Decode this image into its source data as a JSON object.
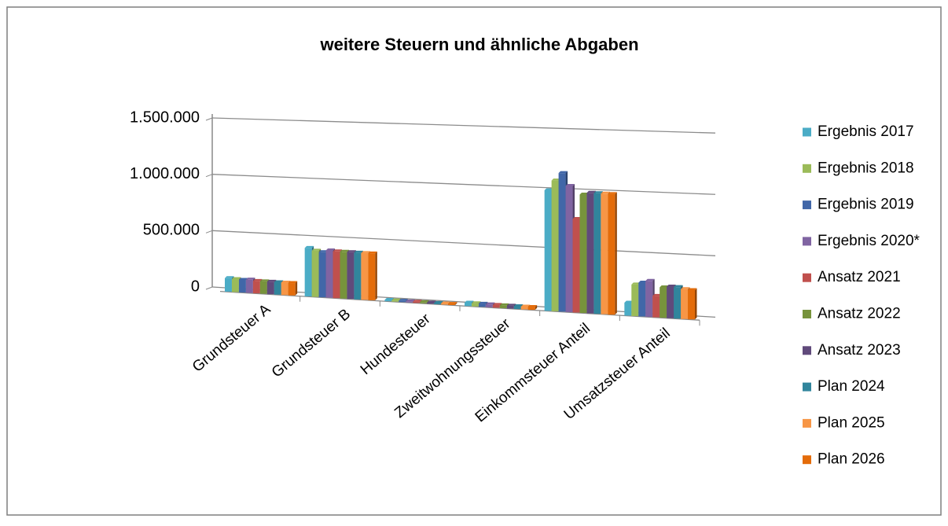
{
  "chart_data": {
    "type": "bar3d",
    "title": "weitere Steuern und ähnliche Abgaben",
    "categories": [
      "Grundsteuer A",
      "Grundsteuer B",
      "Hundesteuer",
      "Zweitwohnungssteuer",
      "Einkommsteuer Anteil",
      "Umsatzsteuer Anteil"
    ],
    "series": [
      {
        "name": "Ergebnis 2017",
        "color": "#4bacc6",
        "values": [
          120000,
          430000,
          12000,
          30000,
          1070000,
          115000
        ]
      },
      {
        "name": "Ergebnis 2018",
        "color": "#9bbb59",
        "values": [
          115000,
          410000,
          11000,
          28000,
          1160000,
          280000
        ]
      },
      {
        "name": "Ergebnis 2019",
        "color": "#4167a8",
        "values": [
          112000,
          400000,
          11000,
          28000,
          1230000,
          300000
        ]
      },
      {
        "name": "Ergebnis 2020*",
        "color": "#8064a2",
        "values": [
          118000,
          420000,
          10000,
          26000,
          1120000,
          320000
        ]
      },
      {
        "name": "Ansatz 2021",
        "color": "#c0504d",
        "values": [
          110000,
          415000,
          10000,
          25000,
          830000,
          190000
        ]
      },
      {
        "name": "Ansatz 2022",
        "color": "#77933c",
        "values": [
          110000,
          415000,
          10000,
          25000,
          1050000,
          270000
        ]
      },
      {
        "name": "Ansatz 2023",
        "color": "#604a7b",
        "values": [
          110000,
          415000,
          10000,
          25000,
          1070000,
          280000
        ]
      },
      {
        "name": "Plan 2024",
        "color": "#31859c",
        "values": [
          110000,
          415000,
          10000,
          25000,
          1070000,
          280000
        ]
      },
      {
        "name": "Plan 2025",
        "color": "#f79646",
        "values": [
          110000,
          415000,
          10000,
          25000,
          1070000,
          265000
        ]
      },
      {
        "name": "Plan 2026",
        "color": "#e46c0a",
        "values": [
          110000,
          415000,
          10000,
          25000,
          1070000,
          260000
        ]
      }
    ],
    "ylim": [
      0,
      1500000
    ],
    "yticks": [
      {
        "value": 0,
        "label": "0"
      },
      {
        "value": 500000,
        "label": "500.000"
      },
      {
        "value": 1000000,
        "label": "1.000.000"
      },
      {
        "value": 1500000,
        "label": "1.500.000"
      }
    ],
    "grid": true,
    "legend": "right"
  }
}
